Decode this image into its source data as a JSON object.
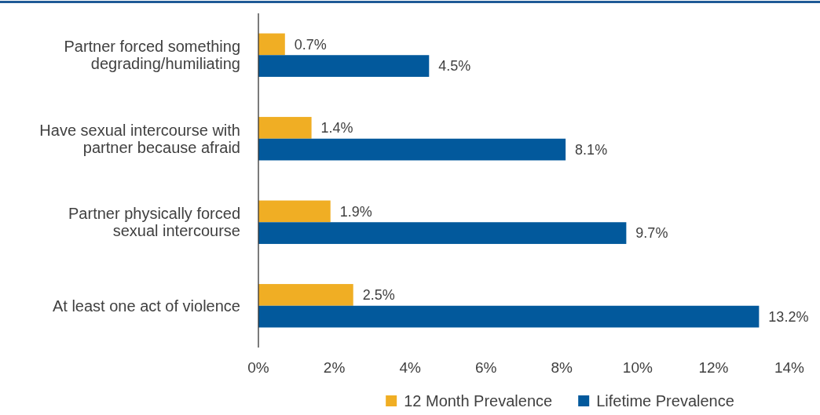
{
  "chart_data": {
    "type": "bar",
    "orientation": "horizontal",
    "categories": [
      "Partner forced something degrading/humiliating",
      "Have sexual intercourse with partner because afraid",
      "Partner physically forced sexual intercourse",
      "At least one act of violence"
    ],
    "series": [
      {
        "name": "12 Month Prevalence",
        "color": "#f0ae24",
        "values": [
          0.7,
          1.4,
          1.9,
          2.5
        ],
        "value_labels": [
          "0.7%",
          "1.4%",
          "1.9%",
          "2.5%"
        ]
      },
      {
        "name": "Lifetime Prevalence",
        "color": "#02599c",
        "values": [
          4.5,
          8.1,
          9.7,
          13.2
        ],
        "value_labels": [
          "4.5%",
          "8.1%",
          "9.7%",
          "13.2%"
        ]
      }
    ],
    "xlim": [
      0,
      14
    ],
    "xticks": [
      {
        "value": 0,
        "label": "0%"
      },
      {
        "value": 2,
        "label": "2%"
      },
      {
        "value": 4,
        "label": "4%"
      },
      {
        "value": 6,
        "label": "6%"
      },
      {
        "value": 8,
        "label": "8%"
      },
      {
        "value": 10,
        "label": "10%"
      },
      {
        "value": 12,
        "label": "12%"
      },
      {
        "value": 14,
        "label": "14%"
      }
    ],
    "grid": false,
    "legend": "bottom"
  }
}
